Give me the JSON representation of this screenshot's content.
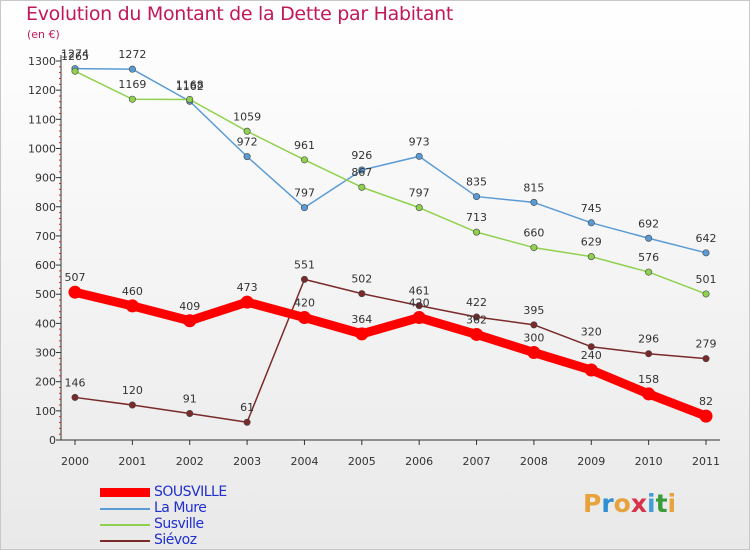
{
  "title": "Evolution du Montant de la Dette par Habitant",
  "subtitle": "(en €)",
  "logo": {
    "text": "Proxiti",
    "colors": [
      "#e8a23c",
      "#2f8fd0",
      "#e8a23c",
      "#d8334a",
      "#3fa0d8",
      "#3a9b3a",
      "#e8a23c"
    ]
  },
  "chart_data": {
    "type": "line",
    "title": "Evolution du Montant de la Dette par Habitant",
    "subtitle": "(en €)",
    "xlabel": "",
    "ylabel": "",
    "ylim": [
      0,
      1300
    ],
    "yticks": [
      0,
      100,
      200,
      300,
      400,
      500,
      600,
      700,
      800,
      900,
      1000,
      1100,
      1200,
      1300
    ],
    "x": [
      "2000",
      "2001",
      "2002",
      "2003",
      "2004",
      "2005",
      "2006",
      "2007",
      "2008",
      "2009",
      "2010",
      "2011"
    ],
    "grid": false,
    "legend_position": "bottom-left",
    "series": [
      {
        "name": "La Mure",
        "color": "#5b9bd5",
        "values": [
          1274,
          1272,
          1162,
          972,
          797,
          926,
          973,
          835,
          815,
          745,
          692,
          642
        ]
      },
      {
        "name": "Susville",
        "color": "#8fd14f",
        "values": [
          1265,
          1169,
          1168,
          1059,
          961,
          867,
          797,
          713,
          660,
          629,
          576,
          501
        ]
      },
      {
        "name": "Siévoz",
        "color": "#7a2a2a",
        "values": [
          146,
          120,
          91,
          61,
          551,
          502,
          461,
          422,
          395,
          320,
          296,
          279
        ]
      },
      {
        "name": "SOUSVILLE",
        "color": "#ff0000",
        "values": [
          507,
          460,
          409,
          473,
          420,
          364,
          420,
          362,
          300,
          240,
          158,
          82
        ]
      }
    ],
    "legend": [
      {
        "name": "SOUSVILLE",
        "color": "#ff0000",
        "thick": true
      },
      {
        "name": "La Mure",
        "color": "#5b9bd5",
        "thick": false
      },
      {
        "name": "Susville",
        "color": "#8fd14f",
        "thick": false
      },
      {
        "name": "Siévoz",
        "color": "#7a2a2a",
        "thick": false
      }
    ]
  }
}
